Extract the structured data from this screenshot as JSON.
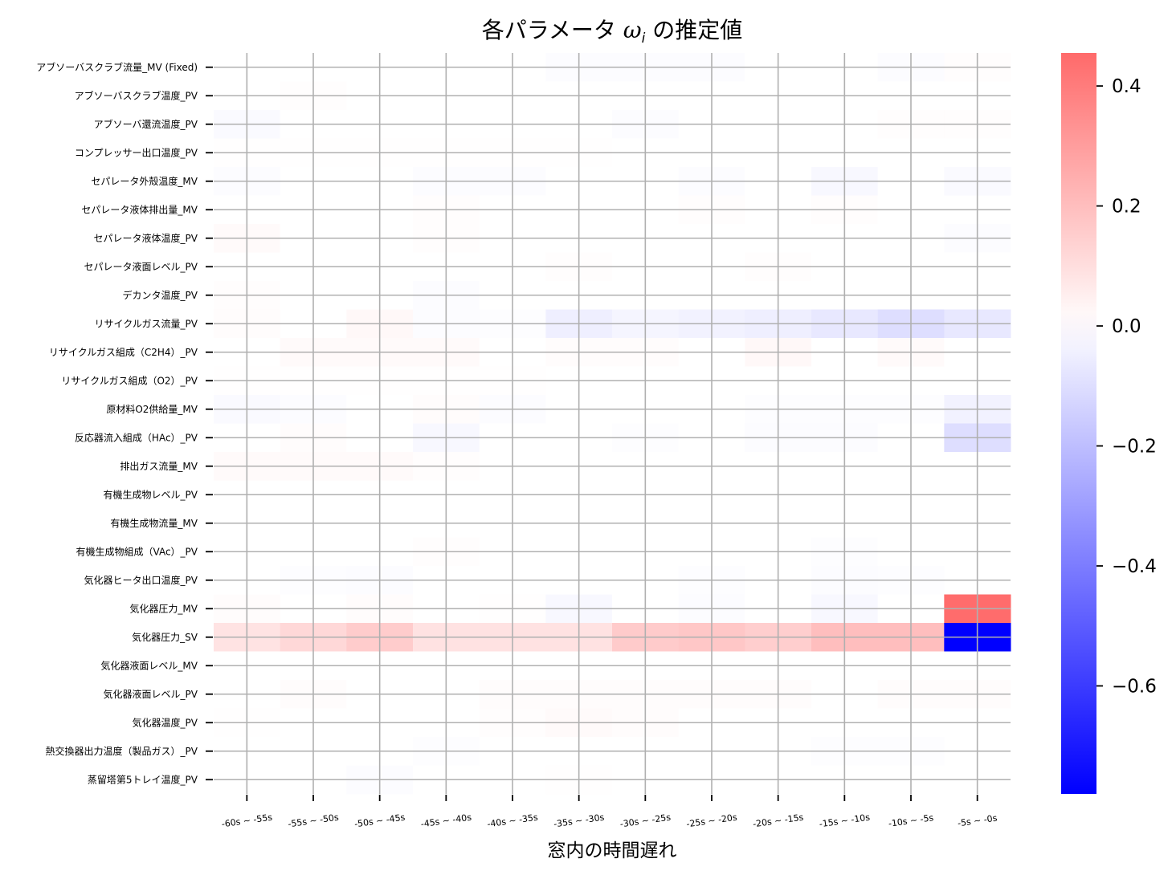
{
  "chart_data": {
    "type": "heatmap",
    "title": "各パラメータ ω_i の推定値",
    "title_parts": {
      "prefix": "各パラメータ ",
      "symbol": "ω",
      "subscript": "i",
      "suffix": " の推定値"
    },
    "xlabel": "窓内の時間遅れ",
    "ylabel": "",
    "x_categories": [
      "-60s ~ -55s",
      "-55s ~ -50s",
      "-50s ~ -45s",
      "-45s ~ -40s",
      "-40s ~ -35s",
      "-35s ~ -30s",
      "-30s ~ -25s",
      "-25s ~ -20s",
      "-20s ~ -15s",
      "-15s ~ -10s",
      "-10s ~ -5s",
      "-5s ~ -0s"
    ],
    "y_categories": [
      "アブソーバスクラブ流量_MV (Fixed)",
      "アブソーバスクラブ温度_PV",
      "アブソーバ還流温度_PV",
      "コンプレッサー出口温度_PV",
      "セパレータ外殻温度_MV",
      "セパレータ液体排出量_MV",
      "セパレータ液体温度_PV",
      "セパレータ液面レベル_PV",
      "デカンタ温度_PV",
      "リサイクルガス流量_PV",
      "リサイクルガス組成（C2H4）_PV",
      "リサイクルガス組成（O2）_PV",
      "原材料O2供給量_MV",
      "反応器流入組成（HAc）_PV",
      "排出ガス流量_MV",
      "有機生成物レベル_PV",
      "有機生成物流量_MV",
      "有機生成物組成（VAc）_PV",
      "気化器ヒータ出口温度_PV",
      "気化器圧力_MV",
      "気化器圧力_SV",
      "気化器液面レベル_MV",
      "気化器液面レベル_PV",
      "気化器温度_PV",
      "熱交換器出力温度（製品ガス）_PV",
      "蒸留塔第5トレイ温度_PV"
    ],
    "values": [
      [
        0,
        0,
        0,
        0,
        0,
        -0.01,
        -0.01,
        -0.01,
        0,
        0,
        -0.01,
        0.005
      ],
      [
        0,
        0.005,
        0,
        0,
        0,
        0,
        0,
        0,
        0,
        0,
        0,
        0
      ],
      [
        -0.015,
        0,
        0,
        0,
        0,
        0,
        -0.01,
        0,
        0,
        0,
        0.005,
        0.005
      ],
      [
        0.003,
        0.003,
        0.003,
        0.003,
        0.003,
        0.003,
        0,
        0,
        0,
        0,
        0,
        0
      ],
      [
        -0.01,
        0,
        0,
        -0.01,
        -0.01,
        0,
        0,
        -0.01,
        0,
        -0.02,
        0,
        -0.015
      ],
      [
        0,
        0,
        0,
        0.005,
        0,
        0,
        0,
        0.005,
        0,
        0.005,
        0,
        0
      ],
      [
        0.015,
        0,
        0,
        0.005,
        0,
        0,
        0,
        0,
        0,
        0,
        0,
        -0.008
      ],
      [
        0,
        0,
        0,
        0,
        0,
        0.005,
        0,
        0,
        0.005,
        0,
        0,
        0
      ],
      [
        0.005,
        0,
        0,
        -0.01,
        0,
        0,
        0,
        0,
        0,
        0,
        0,
        0
      ],
      [
        0.01,
        0,
        0.02,
        -0.01,
        -0.005,
        -0.05,
        -0.03,
        -0.04,
        -0.05,
        -0.07,
        -0.1,
        -0.07
      ],
      [
        0,
        0.015,
        0.015,
        0.015,
        0,
        0.01,
        0.01,
        0,
        0.02,
        0,
        0.015,
        0
      ],
      [
        0.003,
        0.003,
        0.003,
        0.003,
        0.003,
        0,
        0,
        0,
        0,
        0,
        0,
        0
      ],
      [
        -0.015,
        -0.01,
        0,
        0.01,
        -0.01,
        0,
        0,
        0,
        -0.005,
        -0.005,
        -0.005,
        -0.04
      ],
      [
        0,
        0.01,
        0,
        -0.02,
        0,
        0,
        -0.005,
        0,
        -0.01,
        -0.01,
        0,
        -0.1
      ],
      [
        0.015,
        0.015,
        0.015,
        0.005,
        0,
        0,
        0,
        0,
        0,
        0,
        0,
        0
      ],
      [
        0,
        0,
        0,
        0,
        0,
        0,
        0,
        0,
        0,
        0,
        0,
        0
      ],
      [
        0,
        0,
        0,
        0,
        0,
        0,
        0,
        0,
        0,
        0,
        0,
        0
      ],
      [
        0,
        0,
        0,
        0.005,
        0,
        0,
        0,
        0,
        0,
        -0.005,
        0,
        0
      ],
      [
        0,
        -0.005,
        -0.008,
        0,
        0,
        0,
        0,
        -0.005,
        0,
        -0.008,
        -0.005,
        0
      ],
      [
        0.01,
        0,
        0.01,
        0,
        0.003,
        -0.02,
        0,
        -0.01,
        0,
        -0.02,
        0,
        0.45
      ],
      [
        0.085,
        0.12,
        0.155,
        0.09,
        0.09,
        0.09,
        0.16,
        0.17,
        0.15,
        0.2,
        0.2,
        -0.78
      ],
      [
        0,
        0,
        0,
        0,
        0,
        0,
        0,
        0,
        0,
        0,
        0,
        0
      ],
      [
        0,
        0.01,
        0,
        0,
        0.01,
        0.01,
        0.01,
        0.01,
        0.01,
        0,
        0.01,
        0.01
      ],
      [
        0.003,
        0,
        0,
        0,
        0.005,
        0.015,
        0.01,
        0,
        0,
        0,
        0,
        0
      ],
      [
        0,
        0,
        0,
        -0.005,
        0,
        0,
        0,
        0,
        0,
        -0.005,
        -0.005,
        0
      ],
      [
        0,
        0,
        -0.008,
        0,
        0,
        0.003,
        0,
        0,
        0,
        0,
        0,
        0
      ]
    ],
    "colormap": "bwr",
    "color_center": 0,
    "colors": {
      "negative": "#0000ff",
      "zero": "#ffffff",
      "positive": "#ff0000"
    },
    "colorbar": {
      "range": [
        -0.78,
        0.455
      ],
      "ticks": [
        0.4,
        0.2,
        0.0,
        -0.2,
        -0.4,
        -0.6
      ],
      "tick_labels": [
        "0.4",
        "0.2",
        "0.0",
        "−0.2",
        "−0.4",
        "−0.6"
      ]
    },
    "grid": true,
    "grid_color": "#b0b0b0"
  }
}
